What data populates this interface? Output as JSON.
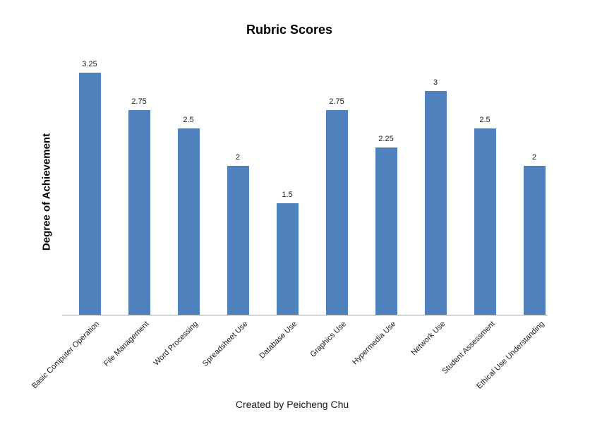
{
  "page": {
    "title": "Rubric Scores",
    "ylabel": "Degree of Achievement",
    "footer": "Created by Peicheng Chu"
  },
  "colors": {
    "bar": "#4F81BD",
    "axis": "#A6A6A6",
    "text": "#1A1A1A",
    "background": "#FFFFFF"
  },
  "chart_data": {
    "type": "bar",
    "title": "Rubric Scores",
    "xlabel": "",
    "ylabel": "Degree of Achievement",
    "categories": [
      "Basic Computer Operation",
      "File Management",
      "Word Processing",
      "Spreadsheet Use",
      "Database Use",
      "Graphics Use",
      "Hypermedia Use",
      "Network Use",
      "Student Assessment",
      "Ethical Use Understanding"
    ],
    "values": [
      3.25,
      2.75,
      2.5,
      2,
      1.5,
      2.75,
      2.25,
      3,
      2.5,
      2
    ],
    "data_labels": [
      "3.25",
      "2.75",
      "2.5",
      "2",
      "1.5",
      "2.75",
      "2.25",
      "3",
      "2.5",
      "2"
    ],
    "ylim": [
      0,
      3.5
    ],
    "y_axis_ticks_visible": false,
    "grid": false,
    "legend": false,
    "bar_color": "#4F81BD",
    "category_label_rotation_deg": 45,
    "footer": "Created by Peicheng Chu"
  }
}
